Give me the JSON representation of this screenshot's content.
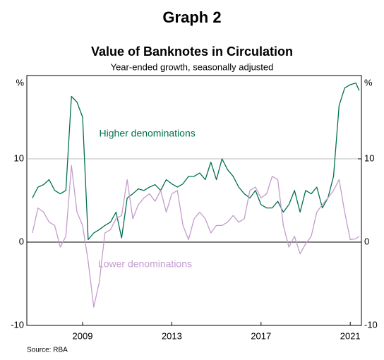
{
  "chart_data": {
    "type": "line",
    "header": "Graph 2",
    "title": "Value of Banknotes in Circulation",
    "subtitle": "Year-ended growth, seasonally adjusted",
    "source": "Source: RBA",
    "annotations": [
      {
        "text": "Higher denominations",
        "x": 2011.9,
        "y": 13,
        "color": "#00704f"
      },
      {
        "text": "Lower denominations",
        "x": 2011.8,
        "y": -2.7,
        "color": "#c39ccd"
      }
    ],
    "x": [
      2006.75,
      2007.0,
      2007.25,
      2007.5,
      2007.75,
      2008.0,
      2008.25,
      2008.5,
      2008.75,
      2009.0,
      2009.25,
      2009.5,
      2009.75,
      2010.0,
      2010.25,
      2010.5,
      2010.75,
      2011.0,
      2011.25,
      2011.5,
      2011.75,
      2012.0,
      2012.25,
      2012.5,
      2012.75,
      2013.0,
      2013.25,
      2013.5,
      2013.75,
      2014.0,
      2014.25,
      2014.5,
      2014.75,
      2015.0,
      2015.25,
      2015.5,
      2015.75,
      2016.0,
      2016.25,
      2016.5,
      2016.75,
      2017.0,
      2017.25,
      2017.5,
      2017.75,
      2018.0,
      2018.25,
      2018.5,
      2018.75,
      2019.0,
      2019.25,
      2019.5,
      2019.75,
      2020.0,
      2020.25,
      2020.5,
      2020.75,
      2021.0,
      2021.25,
      2021.4
    ],
    "series": [
      {
        "name": "Higher denominations",
        "color": "#00704f",
        "values": [
          5.3,
          6.6,
          6.9,
          7.5,
          6.2,
          5.8,
          6.2,
          17.5,
          16.8,
          15.0,
          0.3,
          1.1,
          1.5,
          2.0,
          2.4,
          3.6,
          0.5,
          5.3,
          5.8,
          6.4,
          6.2,
          6.6,
          6.9,
          6.2,
          7.5,
          7.0,
          6.6,
          7.0,
          7.9,
          7.9,
          8.3,
          7.5,
          9.6,
          7.5,
          10.0,
          8.7,
          7.9,
          6.6,
          5.8,
          5.3,
          6.2,
          4.5,
          4.1,
          4.1,
          4.9,
          3.6,
          4.5,
          6.2,
          3.6,
          6.2,
          5.8,
          6.6,
          4.1,
          5.3,
          7.9,
          16.4,
          18.5,
          18.9,
          19.1,
          18.2
        ]
      },
      {
        "name": "Lower denominations",
        "color": "#c39ccd",
        "values": [
          1.1,
          4.1,
          3.6,
          2.4,
          2.0,
          -0.6,
          0.7,
          9.2,
          3.6,
          2.0,
          -2.3,
          -7.8,
          -4.8,
          1.1,
          1.5,
          2.8,
          3.2,
          7.5,
          2.8,
          4.5,
          5.3,
          5.8,
          4.9,
          6.2,
          3.6,
          5.8,
          6.2,
          2.0,
          0.3,
          2.8,
          3.6,
          2.8,
          1.1,
          2.0,
          2.0,
          2.4,
          3.2,
          2.4,
          2.8,
          6.2,
          6.6,
          5.3,
          5.8,
          7.9,
          7.5,
          2.0,
          -0.6,
          0.7,
          -1.4,
          -0.2,
          0.7,
          3.6,
          4.5,
          5.3,
          6.2,
          7.5,
          3.6,
          0.3,
          0.4,
          0.7
        ]
      }
    ],
    "xlim": [
      2006.5,
      2021.5
    ],
    "xticks": [
      2009,
      2013,
      2017,
      2021
    ],
    "ylim": [
      -10,
      20
    ],
    "yticks": [
      -10,
      0,
      10,
      {
        "value": 20,
        "label": "%"
      }
    ],
    "y2lim": [
      -10,
      20
    ],
    "y2ticks": [
      -10,
      0,
      10,
      {
        "value": 20,
        "label": "%"
      }
    ],
    "grid": true
  }
}
